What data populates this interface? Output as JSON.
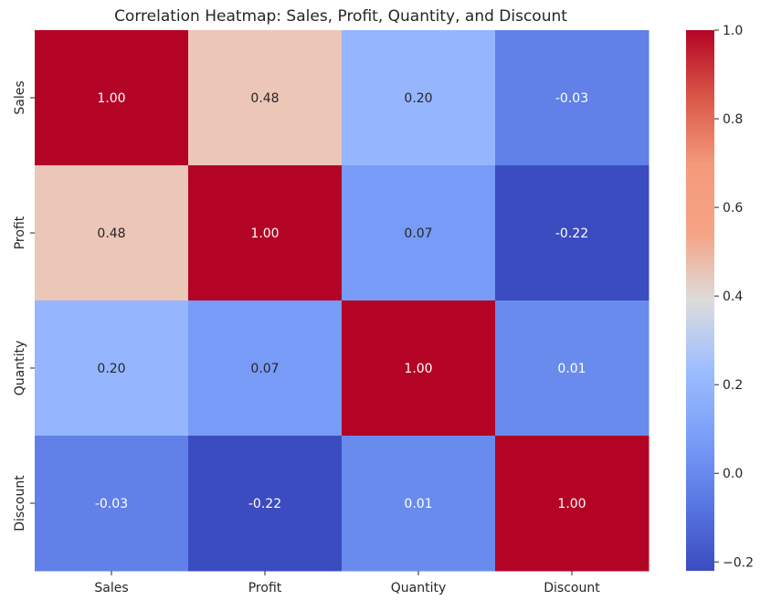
{
  "chart_data": {
    "type": "heatmap",
    "title": "Correlation Heatmap: Sales, Profit, Quantity, and Discount",
    "xlabel": "",
    "ylabel": "",
    "x_categories": [
      "Sales",
      "Profit",
      "Quantity",
      "Discount"
    ],
    "y_categories": [
      "Sales",
      "Profit",
      "Quantity",
      "Discount"
    ],
    "values": [
      [
        1.0,
        0.48,
        0.2,
        -0.03
      ],
      [
        0.48,
        1.0,
        0.07,
        -0.22
      ],
      [
        0.2,
        0.07,
        1.0,
        0.01
      ],
      [
        -0.03,
        -0.22,
        0.01,
        1.0
      ]
    ],
    "annotations": [
      [
        "1.00",
        "0.48",
        "0.20",
        "-0.03"
      ],
      [
        "0.48",
        "1.00",
        "0.07",
        "-0.22"
      ],
      [
        "0.20",
        "0.07",
        "1.00",
        "0.01"
      ],
      [
        "-0.03",
        "-0.22",
        "0.01",
        "1.00"
      ]
    ],
    "colormap": "coolwarm",
    "vmin": -0.22,
    "vmax": 1.0,
    "colorbar_ticks": [
      -0.2,
      0.0,
      0.2,
      0.4,
      0.6,
      0.8,
      1.0
    ],
    "colorbar_tick_labels": [
      "−0.2",
      "0.0",
      "0.2",
      "0.4",
      "0.6",
      "0.8",
      "1.0"
    ]
  }
}
